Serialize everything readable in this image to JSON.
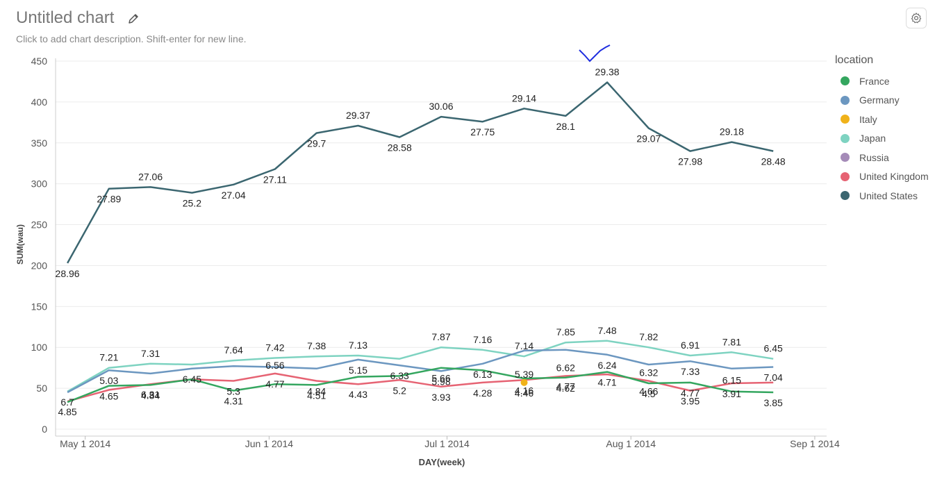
{
  "header": {
    "title": "Untitled chart",
    "description": "Click to add chart description. Shift-enter for new line."
  },
  "chart_data": {
    "type": "line",
    "xlabel": "DAY(week)",
    "ylabel": "SUM(wau)",
    "ylim": [
      0,
      450
    ],
    "yticks": [
      0,
      50,
      100,
      150,
      200,
      250,
      300,
      350,
      400,
      450
    ],
    "x_ticks": [
      "May 1 2014",
      "Jun 1 2014",
      "Jul 1 2014",
      "Aug 1 2014",
      "Sep 1 2014"
    ],
    "x_tick_dates": [
      "2014-05-01",
      "2014-06-01",
      "2014-07-01",
      "2014-08-01",
      "2014-09-01"
    ],
    "x_range": [
      "2014-04-26",
      "2014-09-03"
    ],
    "grid": true,
    "legend_title": "location",
    "legend_position": "right",
    "x": [
      "2014-04-28",
      "2014-05-05",
      "2014-05-12",
      "2014-05-19",
      "2014-05-26",
      "2014-06-02",
      "2014-06-09",
      "2014-06-16",
      "2014-06-23",
      "2014-06-30",
      "2014-07-07",
      "2014-07-14",
      "2014-07-21",
      "2014-07-28",
      "2014-08-04",
      "2014-08-11",
      "2014-08-18",
      "2014-08-25"
    ],
    "series": [
      {
        "name": "France",
        "color": "#34a65f",
        "values": [
          33,
          53,
          54,
          61,
          47,
          55,
          54,
          64,
          65,
          75,
          72,
          62,
          63,
          70,
          56,
          57,
          46,
          45
        ],
        "labels": [
          null,
          "4.65",
          null,
          null,
          "4.31",
          null,
          "4.51",
          null,
          null,
          "5.66",
          null,
          null,
          "4.62",
          "4.71",
          "4.5",
          "4.77",
          null,
          "3.85"
        ]
      },
      {
        "name": "Germany",
        "color": "#6c97c0",
        "values": [
          45,
          72,
          68,
          74,
          77,
          76,
          74,
          85,
          78,
          71,
          80,
          96,
          97,
          91,
          79,
          83,
          74,
          76
        ],
        "labels": [
          null,
          "5.03",
          null,
          "6.45",
          null,
          null,
          null,
          "5.15",
          "6.33",
          "5.98",
          "6.13",
          null,
          null,
          "6.24",
          null,
          "7.33",
          null,
          "7.04"
        ]
      },
      {
        "name": "Italy",
        "color": "#f0b21a",
        "values": [
          null,
          null,
          null,
          null,
          null,
          null,
          null,
          null,
          null,
          null,
          null,
          57,
          null,
          null,
          null,
          null,
          null,
          null
        ],
        "labels": [
          null,
          null,
          null,
          null,
          null,
          null,
          null,
          null,
          null,
          null,
          null,
          "4.46",
          null,
          null,
          null,
          null,
          null,
          null
        ]
      },
      {
        "name": "Japan",
        "color": "#7ed3c1",
        "values": [
          46,
          75,
          80,
          79,
          84,
          87,
          89,
          90,
          86,
          100,
          97,
          89,
          106,
          108,
          100,
          90,
          94,
          86
        ],
        "labels": [
          null,
          "7.21",
          "7.31",
          null,
          "7.64",
          "7.42",
          "7.38",
          "7.13",
          null,
          "7.87",
          "7.16",
          "7.14",
          "7.85",
          "7.48",
          "7.82",
          "6.91",
          "7.81",
          "6.45"
        ]
      },
      {
        "name": "Russia",
        "color": "#a58bb8",
        "values": [
          null,
          null,
          56,
          null,
          49,
          null,
          null,
          null,
          null,
          null,
          null,
          null,
          null,
          null,
          null,
          null,
          null,
          null
        ],
        "labels": [
          null,
          null,
          null,
          null,
          null,
          null,
          null,
          null,
          null,
          null,
          null,
          null,
          null,
          null,
          null,
          null,
          null,
          null
        ]
      },
      {
        "name": "United Kingdom",
        "color": "#e66373",
        "values": [
          34,
          48,
          55,
          61,
          59,
          68,
          59,
          55,
          60,
          52,
          57,
          60,
          65,
          67,
          59,
          47,
          56,
          57
        ],
        "labels": [
          "4.85",
          null,
          "6.31",
          null,
          "5.3",
          "4.77",
          "4.84",
          "4.43",
          "5.2",
          "3.93",
          "4.28",
          "4.16",
          "4.77",
          null,
          "4.66",
          "3.95",
          "3.91",
          null
        ]
      },
      {
        "name": "United States",
        "color": "#3b6670",
        "values": [
          203,
          294,
          296,
          289,
          299,
          318,
          362,
          371,
          357,
          382,
          376,
          392,
          383,
          424,
          368,
          340,
          351,
          340
        ],
        "labels": [
          "28.96",
          "27.89",
          "27.06",
          "25.2",
          "27.04",
          "27.11",
          "29.7",
          "29.37",
          "28.58",
          "30.06",
          "27.75",
          "29.14",
          "28.1",
          "29.38",
          "29.07",
          "27.98",
          "29.18",
          "28.48"
        ]
      }
    ],
    "extra_labels": [
      {
        "text": "6.7",
        "x": "2014-04-28",
        "y": 33
      },
      {
        "text": "6.62",
        "x": "2014-07-21",
        "y": 75
      },
      {
        "text": "6.32",
        "x": "2014-08-04",
        "y": 69
      },
      {
        "text": "6.15",
        "x": "2014-08-18",
        "y": 60
      },
      {
        "text": "4.84",
        "x": "2014-05-12",
        "y": 41
      },
      {
        "text": "6.56",
        "x": "2014-06-02",
        "y": 78
      },
      {
        "text": "5.39",
        "x": "2014-07-14",
        "y": 67
      }
    ]
  }
}
